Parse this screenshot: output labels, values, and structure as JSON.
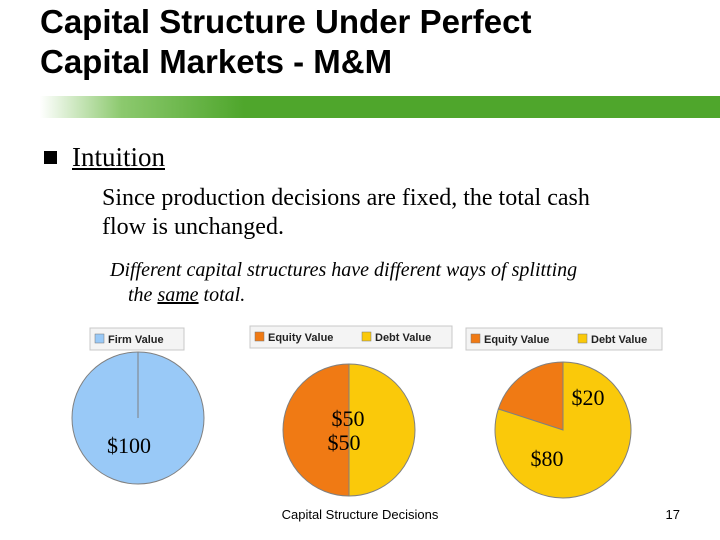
{
  "slide": {
    "title_line1": "Capital Structure Under Perfect",
    "title_line2": "Capital Markets - M&M",
    "bullet": "Intuition",
    "sub_line1": "Since production decisions are fixed, the total cash",
    "sub_line2": "flow is unchanged.",
    "sub2_line1": "Different capital structures have different ways of splitting",
    "sub2_line2_before": "the ",
    "sub2_line2_same": "same",
    "sub2_line2_after": " total.",
    "footer": "Capital Structure Decisions",
    "page_number": "17"
  },
  "colors": {
    "title_bar": "#4fa62c",
    "firm": "#99c9f7",
    "equity": "#f07a14",
    "debt": "#fac90a",
    "outline": "#808080"
  },
  "chart_data": [
    {
      "type": "pie",
      "legend": [
        "Firm Value"
      ],
      "legend_placement": "top-left",
      "slices": [
        {
          "name": "Firm Value",
          "value": 100,
          "label": "$100"
        }
      ]
    },
    {
      "type": "pie",
      "legend": [
        "Equity Value",
        "Debt Value"
      ],
      "legend_placement": "top-left",
      "slices": [
        {
          "name": "Equity Value",
          "value": 50,
          "label": "$50"
        },
        {
          "name": "Debt Value",
          "value": 50,
          "label": "$50"
        }
      ]
    },
    {
      "type": "pie",
      "legend": [
        "Equity Value",
        "Debt Value"
      ],
      "legend_placement": "top-left",
      "slices": [
        {
          "name": "Equity Value",
          "value": 20,
          "label": "$20"
        },
        {
          "name": "Debt Value",
          "value": 80,
          "label": "$80"
        }
      ]
    }
  ]
}
